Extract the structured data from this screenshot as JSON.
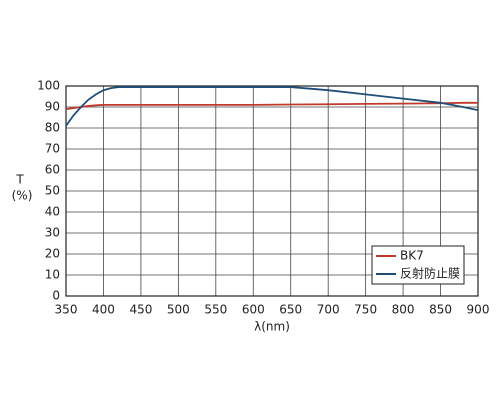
{
  "chart_data": {
    "type": "line",
    "ylabel": "T",
    "yunit": "(%)",
    "xlabel": "λ(nm)",
    "x": [
      350,
      360,
      370,
      380,
      390,
      400,
      410,
      420,
      450,
      500,
      550,
      600,
      650,
      700,
      750,
      800,
      850,
      880,
      900
    ],
    "series": [
      {
        "name": "BK7",
        "color": "#c0392b",
        "values": [
          89,
          89.5,
          90,
          90.5,
          90.8,
          91,
          91,
          91,
          91,
          91,
          91,
          91,
          91.2,
          91.3,
          91.5,
          91.6,
          91.8,
          92,
          92
        ]
      },
      {
        "name": "反射防止膜",
        "color": "#1f4e79",
        "values": [
          81,
          86,
          90,
          93.5,
          96,
          98,
          99,
          99.5,
          99.5,
          99.5,
          99.5,
          99.5,
          99.5,
          98,
          96,
          94,
          92,
          90,
          88.5
        ]
      }
    ],
    "xlim": [
      350,
      900
    ],
    "xticks": [
      350,
      400,
      450,
      500,
      550,
      600,
      650,
      700,
      750,
      800,
      850,
      900
    ],
    "ylim": [
      0,
      100
    ],
    "yticks": [
      0,
      10,
      20,
      30,
      40,
      50,
      60,
      70,
      80,
      90,
      100
    ],
    "grid": true,
    "legend": "lower-right"
  }
}
